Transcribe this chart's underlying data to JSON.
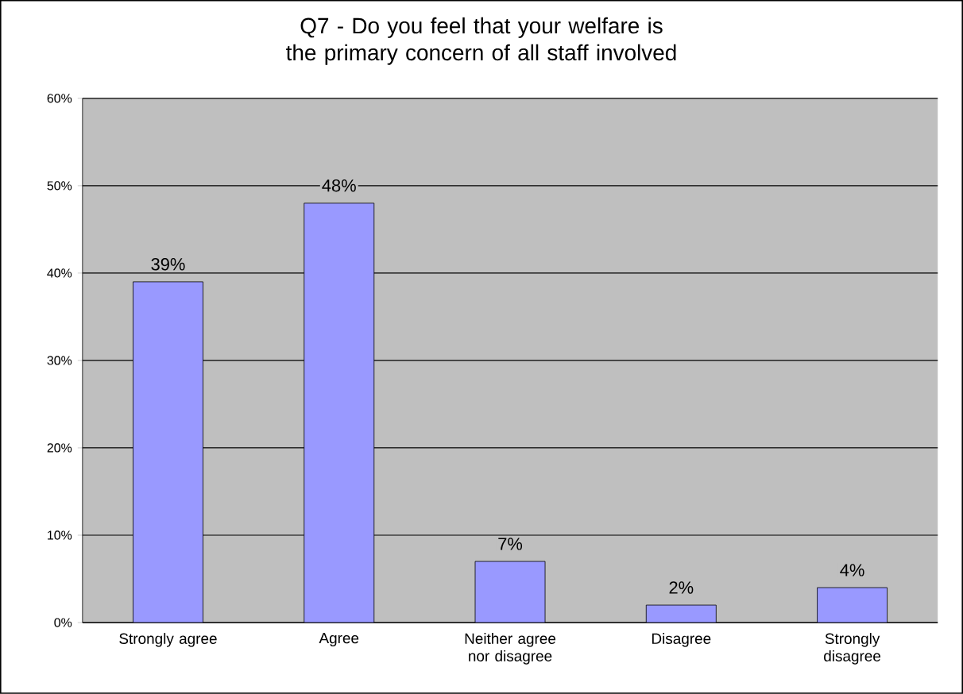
{
  "chart_data": {
    "type": "bar",
    "title": "Q7 - Do you feel that your welfare is the primary concern of all staff involved",
    "categories": [
      "Strongly agree",
      "Agree",
      "Neither agree nor disagree",
      "Disagree",
      "Strongly disagree"
    ],
    "values": [
      39,
      48,
      7,
      2,
      4
    ],
    "value_labels": [
      "39%",
      "48%",
      "7%",
      "2%",
      "4%"
    ],
    "color": "#9999ff",
    "ylim": [
      0,
      60
    ],
    "yticks": [
      {
        "value": 0,
        "label": "0%"
      },
      {
        "value": 10,
        "label": "10%"
      },
      {
        "value": 20,
        "label": "20%"
      },
      {
        "value": 30,
        "label": "30%"
      },
      {
        "value": 40,
        "label": "40%"
      },
      {
        "value": 50,
        "label": "50%"
      },
      {
        "value": 60,
        "label": "60%"
      }
    ],
    "grid": "y"
  }
}
